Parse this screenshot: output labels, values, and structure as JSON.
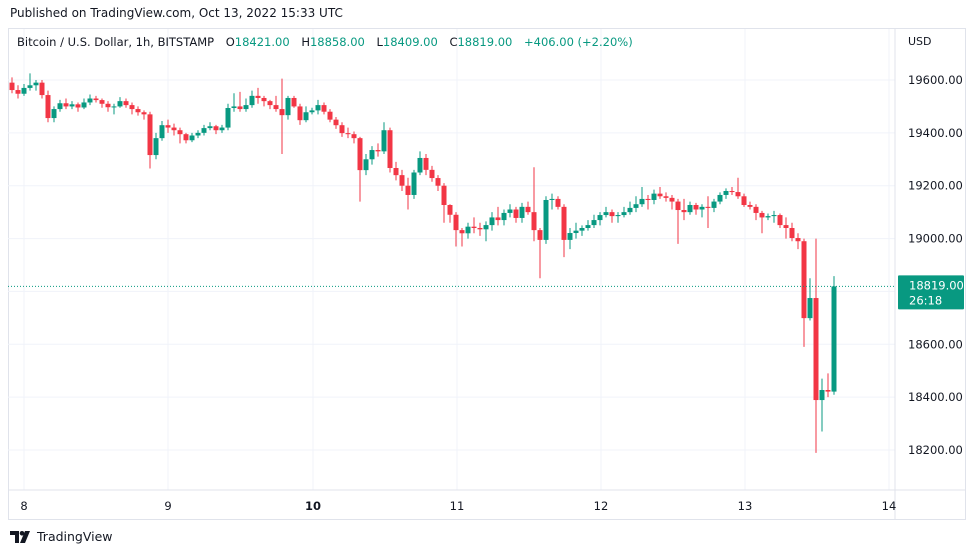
{
  "header": {
    "published": "Published on TradingView.com, Oct 13, 2022 15:33 UTC"
  },
  "legend": {
    "symbol": "Bitcoin / U.S. Dollar, 1h, BITSTAMP",
    "o_label": "O",
    "o": "18421.00",
    "h_label": "H",
    "h": "18858.00",
    "l_label": "L",
    "l": "18409.00",
    "c_label": "C",
    "c": "18819.00",
    "change": "+406.00 (+2.20%)"
  },
  "price_axis": {
    "currency": "USD"
  },
  "last_price": {
    "price": "18819.00",
    "countdown": "26:18"
  },
  "footer": {
    "brand": "TradingView"
  },
  "colors": {
    "up": "#089981",
    "down": "#f23645",
    "grid": "#f0f3fa",
    "text": "#131722"
  },
  "chart_data": {
    "type": "candlestick",
    "interval": "1h",
    "first_candle": "Oct 7 22:00",
    "last_candle": "Oct 13 15:00",
    "ylim": [
      18100,
      19680
    ],
    "y_ticks": [
      18200,
      18400,
      18600,
      18800,
      19000,
      19200,
      19400,
      19600
    ],
    "y_tick_labels": [
      "18200.00",
      "18400.00",
      "18600.00",
      "18800.00",
      "19000.00",
      "19200.00",
      "19400.00",
      "19600.00"
    ],
    "x_ticks": [
      {
        "label": "8",
        "hour": 2
      },
      {
        "label": "9",
        "hour": 26
      },
      {
        "label": "10",
        "hour": 50,
        "bold": true
      },
      {
        "label": "11",
        "hour": 74
      },
      {
        "label": "12",
        "hour": 98
      },
      {
        "label": "13",
        "hour": 122
      },
      {
        "label": "14",
        "hour": 146
      }
    ],
    "grid": true,
    "last_price_line": 18819,
    "ohlc": [
      [
        19590,
        19610,
        19550,
        19562
      ],
      [
        19562,
        19580,
        19530,
        19548
      ],
      [
        19548,
        19585,
        19540,
        19570
      ],
      [
        19570,
        19625,
        19560,
        19580
      ],
      [
        19580,
        19600,
        19560,
        19590
      ],
      [
        19590,
        19600,
        19530,
        19543
      ],
      [
        19543,
        19560,
        19440,
        19456
      ],
      [
        19456,
        19500,
        19440,
        19490
      ],
      [
        19490,
        19525,
        19480,
        19512
      ],
      [
        19512,
        19530,
        19490,
        19500
      ],
      [
        19500,
        19520,
        19490,
        19508
      ],
      [
        19508,
        19515,
        19480,
        19496
      ],
      [
        19496,
        19530,
        19490,
        19515
      ],
      [
        19515,
        19545,
        19505,
        19530
      ],
      [
        19530,
        19540,
        19515,
        19524
      ],
      [
        19524,
        19530,
        19495,
        19510
      ],
      [
        19510,
        19520,
        19480,
        19497
      ],
      [
        19497,
        19510,
        19470,
        19500
      ],
      [
        19500,
        19535,
        19495,
        19520
      ],
      [
        19520,
        19530,
        19495,
        19505
      ],
      [
        19505,
        19515,
        19470,
        19490
      ],
      [
        19490,
        19500,
        19465,
        19478
      ],
      [
        19478,
        19485,
        19450,
        19470
      ],
      [
        19470,
        19480,
        19265,
        19316
      ],
      [
        19316,
        19400,
        19300,
        19380
      ],
      [
        19380,
        19445,
        19370,
        19429
      ],
      [
        19429,
        19450,
        19400,
        19420
      ],
      [
        19420,
        19435,
        19390,
        19410
      ],
      [
        19410,
        19420,
        19360,
        19395
      ],
      [
        19395,
        19400,
        19360,
        19372
      ],
      [
        19372,
        19400,
        19365,
        19390
      ],
      [
        19390,
        19410,
        19380,
        19400
      ],
      [
        19400,
        19430,
        19390,
        19418
      ],
      [
        19418,
        19440,
        19410,
        19425
      ],
      [
        19425,
        19430,
        19395,
        19410
      ],
      [
        19410,
        19430,
        19400,
        19420
      ],
      [
        19420,
        19510,
        19410,
        19494
      ],
      [
        19494,
        19550,
        19480,
        19500
      ],
      [
        19500,
        19555,
        19480,
        19490
      ],
      [
        19490,
        19530,
        19480,
        19505
      ],
      [
        19505,
        19560,
        19495,
        19540
      ],
      [
        19540,
        19570,
        19510,
        19532
      ],
      [
        19532,
        19540,
        19500,
        19520
      ],
      [
        19520,
        19525,
        19490,
        19505
      ],
      [
        19505,
        19540,
        19480,
        19490
      ],
      [
        19490,
        19605,
        19320,
        19467
      ],
      [
        19467,
        19540,
        19450,
        19532
      ],
      [
        19532,
        19540,
        19495,
        19500
      ],
      [
        19500,
        19510,
        19430,
        19448
      ],
      [
        19448,
        19500,
        19440,
        19478
      ],
      [
        19478,
        19495,
        19470,
        19485
      ],
      [
        19485,
        19525,
        19470,
        19505
      ],
      [
        19505,
        19515,
        19470,
        19480
      ],
      [
        19480,
        19490,
        19440,
        19450
      ],
      [
        19450,
        19460,
        19415,
        19429
      ],
      [
        19429,
        19440,
        19385,
        19399
      ],
      [
        19399,
        19420,
        19380,
        19395
      ],
      [
        19395,
        19405,
        19360,
        19380
      ],
      [
        19380,
        19385,
        19140,
        19259
      ],
      [
        19259,
        19320,
        19240,
        19300
      ],
      [
        19300,
        19350,
        19280,
        19335
      ],
      [
        19335,
        19360,
        19310,
        19330
      ],
      [
        19330,
        19440,
        19320,
        19410
      ],
      [
        19410,
        19420,
        19250,
        19267
      ],
      [
        19267,
        19290,
        19220,
        19240
      ],
      [
        19240,
        19260,
        19180,
        19200
      ],
      [
        19200,
        19230,
        19110,
        19165
      ],
      [
        19165,
        19260,
        19150,
        19250
      ],
      [
        19250,
        19330,
        19240,
        19305
      ],
      [
        19305,
        19320,
        19240,
        19260
      ],
      [
        19260,
        19275,
        19215,
        19229
      ],
      [
        19229,
        19240,
        19180,
        19200
      ],
      [
        19200,
        19210,
        19060,
        19127
      ],
      [
        19127,
        19130,
        19060,
        19090
      ],
      [
        19090,
        19100,
        18970,
        19032
      ],
      [
        19032,
        19040,
        18970,
        19020
      ],
      [
        19020,
        19060,
        19000,
        19045
      ],
      [
        19045,
        19080,
        19020,
        19040
      ],
      [
        19040,
        19060,
        19010,
        19035
      ],
      [
        19035,
        19065,
        18990,
        19051
      ],
      [
        19051,
        19100,
        19030,
        19080
      ],
      [
        19080,
        19120,
        19050,
        19070
      ],
      [
        19070,
        19110,
        19050,
        19097
      ],
      [
        19097,
        19130,
        19080,
        19110
      ],
      [
        19110,
        19120,
        19060,
        19078
      ],
      [
        19078,
        19135,
        19060,
        19120
      ],
      [
        19120,
        19140,
        19090,
        19100
      ],
      [
        19100,
        19270,
        18990,
        19032
      ],
      [
        19032,
        19040,
        18850,
        18995
      ],
      [
        18995,
        19160,
        18980,
        19146
      ],
      [
        19146,
        19170,
        19110,
        19150
      ],
      [
        19150,
        19160,
        19110,
        19120
      ],
      [
        19120,
        19130,
        18930,
        18995
      ],
      [
        18995,
        19040,
        18960,
        19021
      ],
      [
        19021,
        19060,
        19000,
        19030
      ],
      [
        19030,
        19050,
        19010,
        19040
      ],
      [
        19040,
        19070,
        19030,
        19051
      ],
      [
        19051,
        19090,
        19040,
        19070
      ],
      [
        19070,
        19100,
        19050,
        19089
      ],
      [
        19089,
        19120,
        19080,
        19100
      ],
      [
        19100,
        19110,
        19060,
        19085
      ],
      [
        19085,
        19100,
        19060,
        19089
      ],
      [
        19089,
        19120,
        19080,
        19100
      ],
      [
        19100,
        19140,
        19090,
        19116
      ],
      [
        19116,
        19160,
        19100,
        19130
      ],
      [
        19130,
        19195,
        19120,
        19150
      ],
      [
        19150,
        19165,
        19110,
        19146
      ],
      [
        19146,
        19185,
        19130,
        19170
      ],
      [
        19170,
        19195,
        19150,
        19160
      ],
      [
        19160,
        19175,
        19140,
        19154
      ],
      [
        19154,
        19165,
        19110,
        19140
      ],
      [
        19140,
        19150,
        18980,
        19108
      ],
      [
        19108,
        19150,
        19070,
        19100
      ],
      [
        19100,
        19140,
        19090,
        19127
      ],
      [
        19127,
        19135,
        19090,
        19110
      ],
      [
        19110,
        19130,
        19080,
        19120
      ],
      [
        19120,
        19160,
        19040,
        19116
      ],
      [
        19116,
        19150,
        19100,
        19140
      ],
      [
        19140,
        19175,
        19130,
        19165
      ],
      [
        19165,
        19190,
        19150,
        19180
      ],
      [
        19180,
        19195,
        19165,
        19176
      ],
      [
        19176,
        19230,
        19150,
        19160
      ],
      [
        19160,
        19170,
        19120,
        19127
      ],
      [
        19127,
        19140,
        19110,
        19120
      ],
      [
        19120,
        19130,
        19070,
        19097
      ],
      [
        19097,
        19105,
        19020,
        19080
      ],
      [
        19080,
        19095,
        19070,
        19085
      ],
      [
        19085,
        19105,
        19060,
        19089
      ],
      [
        19089,
        19095,
        19040,
        19051
      ],
      [
        19051,
        19080,
        19000,
        19040
      ],
      [
        19040,
        19060,
        18990,
        19002
      ],
      [
        19002,
        19020,
        18960,
        18990
      ],
      [
        18990,
        19000,
        18590,
        18699
      ],
      [
        18699,
        18850,
        18690,
        18775
      ],
      [
        18775,
        19000,
        18189,
        18389
      ],
      [
        18389,
        18470,
        18270,
        18427
      ],
      [
        18427,
        18490,
        18400,
        18421
      ],
      [
        18421,
        18858,
        18409,
        18819
      ]
    ]
  }
}
